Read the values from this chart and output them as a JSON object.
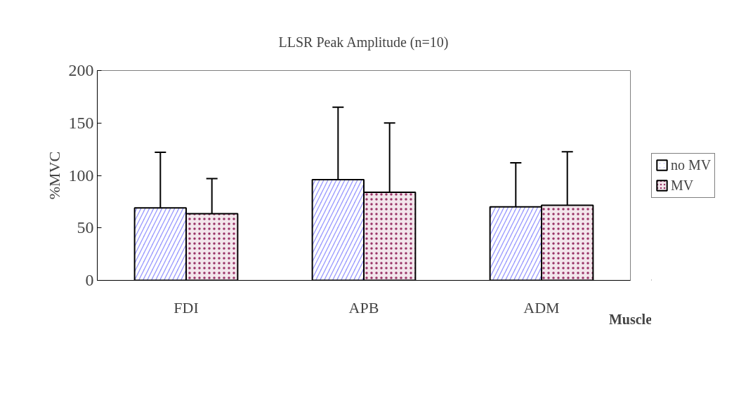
{
  "chart_data": {
    "type": "bar",
    "title": "LLSR Peak Amplitude (n=10)",
    "xlabel": "Muscle",
    "ylabel": "%MVC",
    "categories": [
      "FDI",
      "APB",
      "ADM"
    ],
    "series": [
      {
        "name": "no MV",
        "color": "#9999ff",
        "values": [
          69,
          96,
          70
        ],
        "errors": [
          53,
          69,
          42
        ]
      },
      {
        "name": "MV",
        "color": "#993366",
        "values": [
          63.5,
          84,
          71.5
        ],
        "errors": [
          33.5,
          66,
          51
        ]
      }
    ],
    "ylim": [
      0,
      200
    ],
    "yticks": [
      0,
      50,
      100,
      150,
      200
    ],
    "grid": false,
    "legend": "right"
  }
}
